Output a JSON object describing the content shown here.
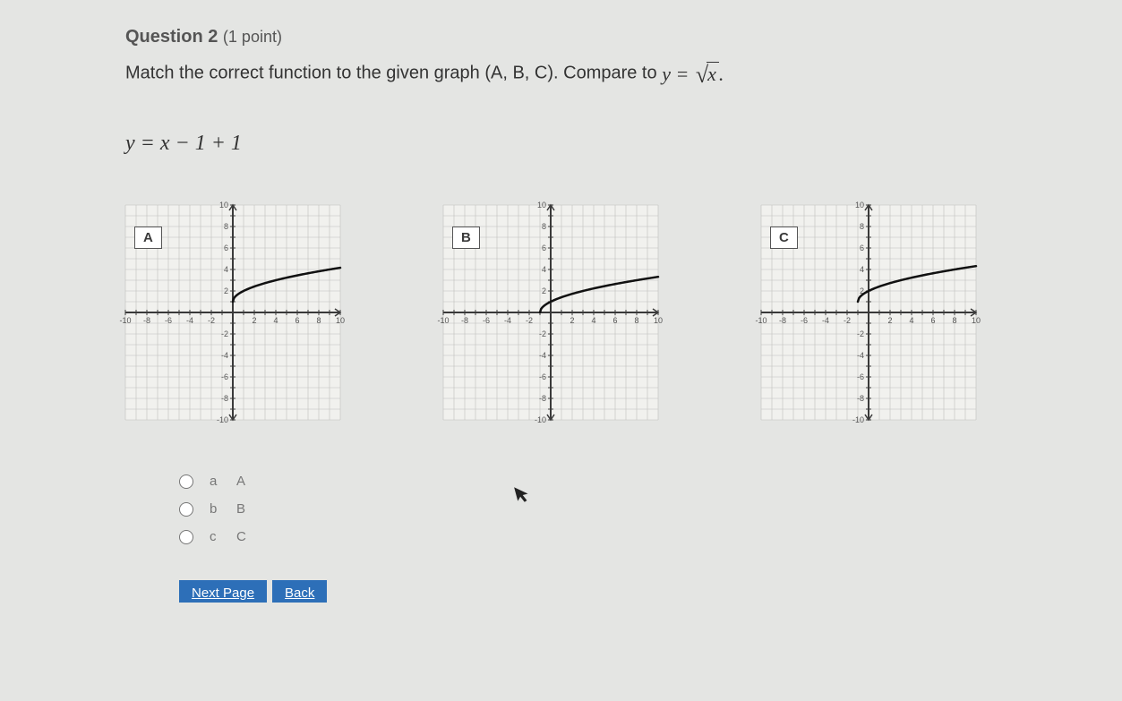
{
  "question_label": "Question 2",
  "points_label": "(1 point)",
  "prompt_text": "Match the correct function to the given graph (A, B, C). Compare to",
  "compare_eq": {
    "lhs": "y",
    "radicand": "x"
  },
  "function_eq": {
    "lhs": "y",
    "radicand": "x − 1",
    "tail": "+ 1"
  },
  "graphs": [
    {
      "label": "A",
      "xlim": [
        -10,
        10
      ],
      "ylim": [
        -10,
        10
      ],
      "ticks": [
        -10,
        -8,
        -6,
        -4,
        -2,
        2,
        4,
        6,
        8,
        10
      ],
      "bg": "#f1f1ee",
      "grid": "#c0c0bc",
      "axis": "#3a3a3a",
      "curve_color": "#111",
      "curve_width": 2.5,
      "curve_start": [
        0,
        1
      ],
      "curve_type": "sqrt_shift_x0_up1",
      "num_fontsize": 9
    },
    {
      "label": "B",
      "xlim": [
        -10,
        10
      ],
      "ylim": [
        -10,
        10
      ],
      "ticks": [
        -10,
        -8,
        -6,
        -4,
        -2,
        2,
        4,
        6,
        8,
        10
      ],
      "bg": "#f1f1ee",
      "grid": "#c0c0bc",
      "axis": "#3a3a3a",
      "curve_color": "#111",
      "curve_width": 2.5,
      "curve_start": [
        -1,
        0
      ],
      "curve_type": "sqrt_shift_xneg1",
      "num_fontsize": 9
    },
    {
      "label": "C",
      "xlim": [
        -10,
        10
      ],
      "ylim": [
        -10,
        10
      ],
      "ticks": [
        -10,
        -8,
        -6,
        -4,
        -2,
        2,
        4,
        6,
        8,
        10
      ],
      "bg": "#f1f1ee",
      "grid": "#c0c0bc",
      "axis": "#3a3a3a",
      "curve_color": "#111",
      "curve_width": 2.5,
      "curve_start": [
        -1,
        1
      ],
      "curve_type": "sqrt_shift_xneg1_up1",
      "num_fontsize": 9
    }
  ],
  "options": [
    {
      "key": "a",
      "value": "A"
    },
    {
      "key": "b",
      "value": "B"
    },
    {
      "key": "c",
      "value": "C"
    }
  ],
  "next_btn": "Next Page",
  "back_btn": "Back"
}
